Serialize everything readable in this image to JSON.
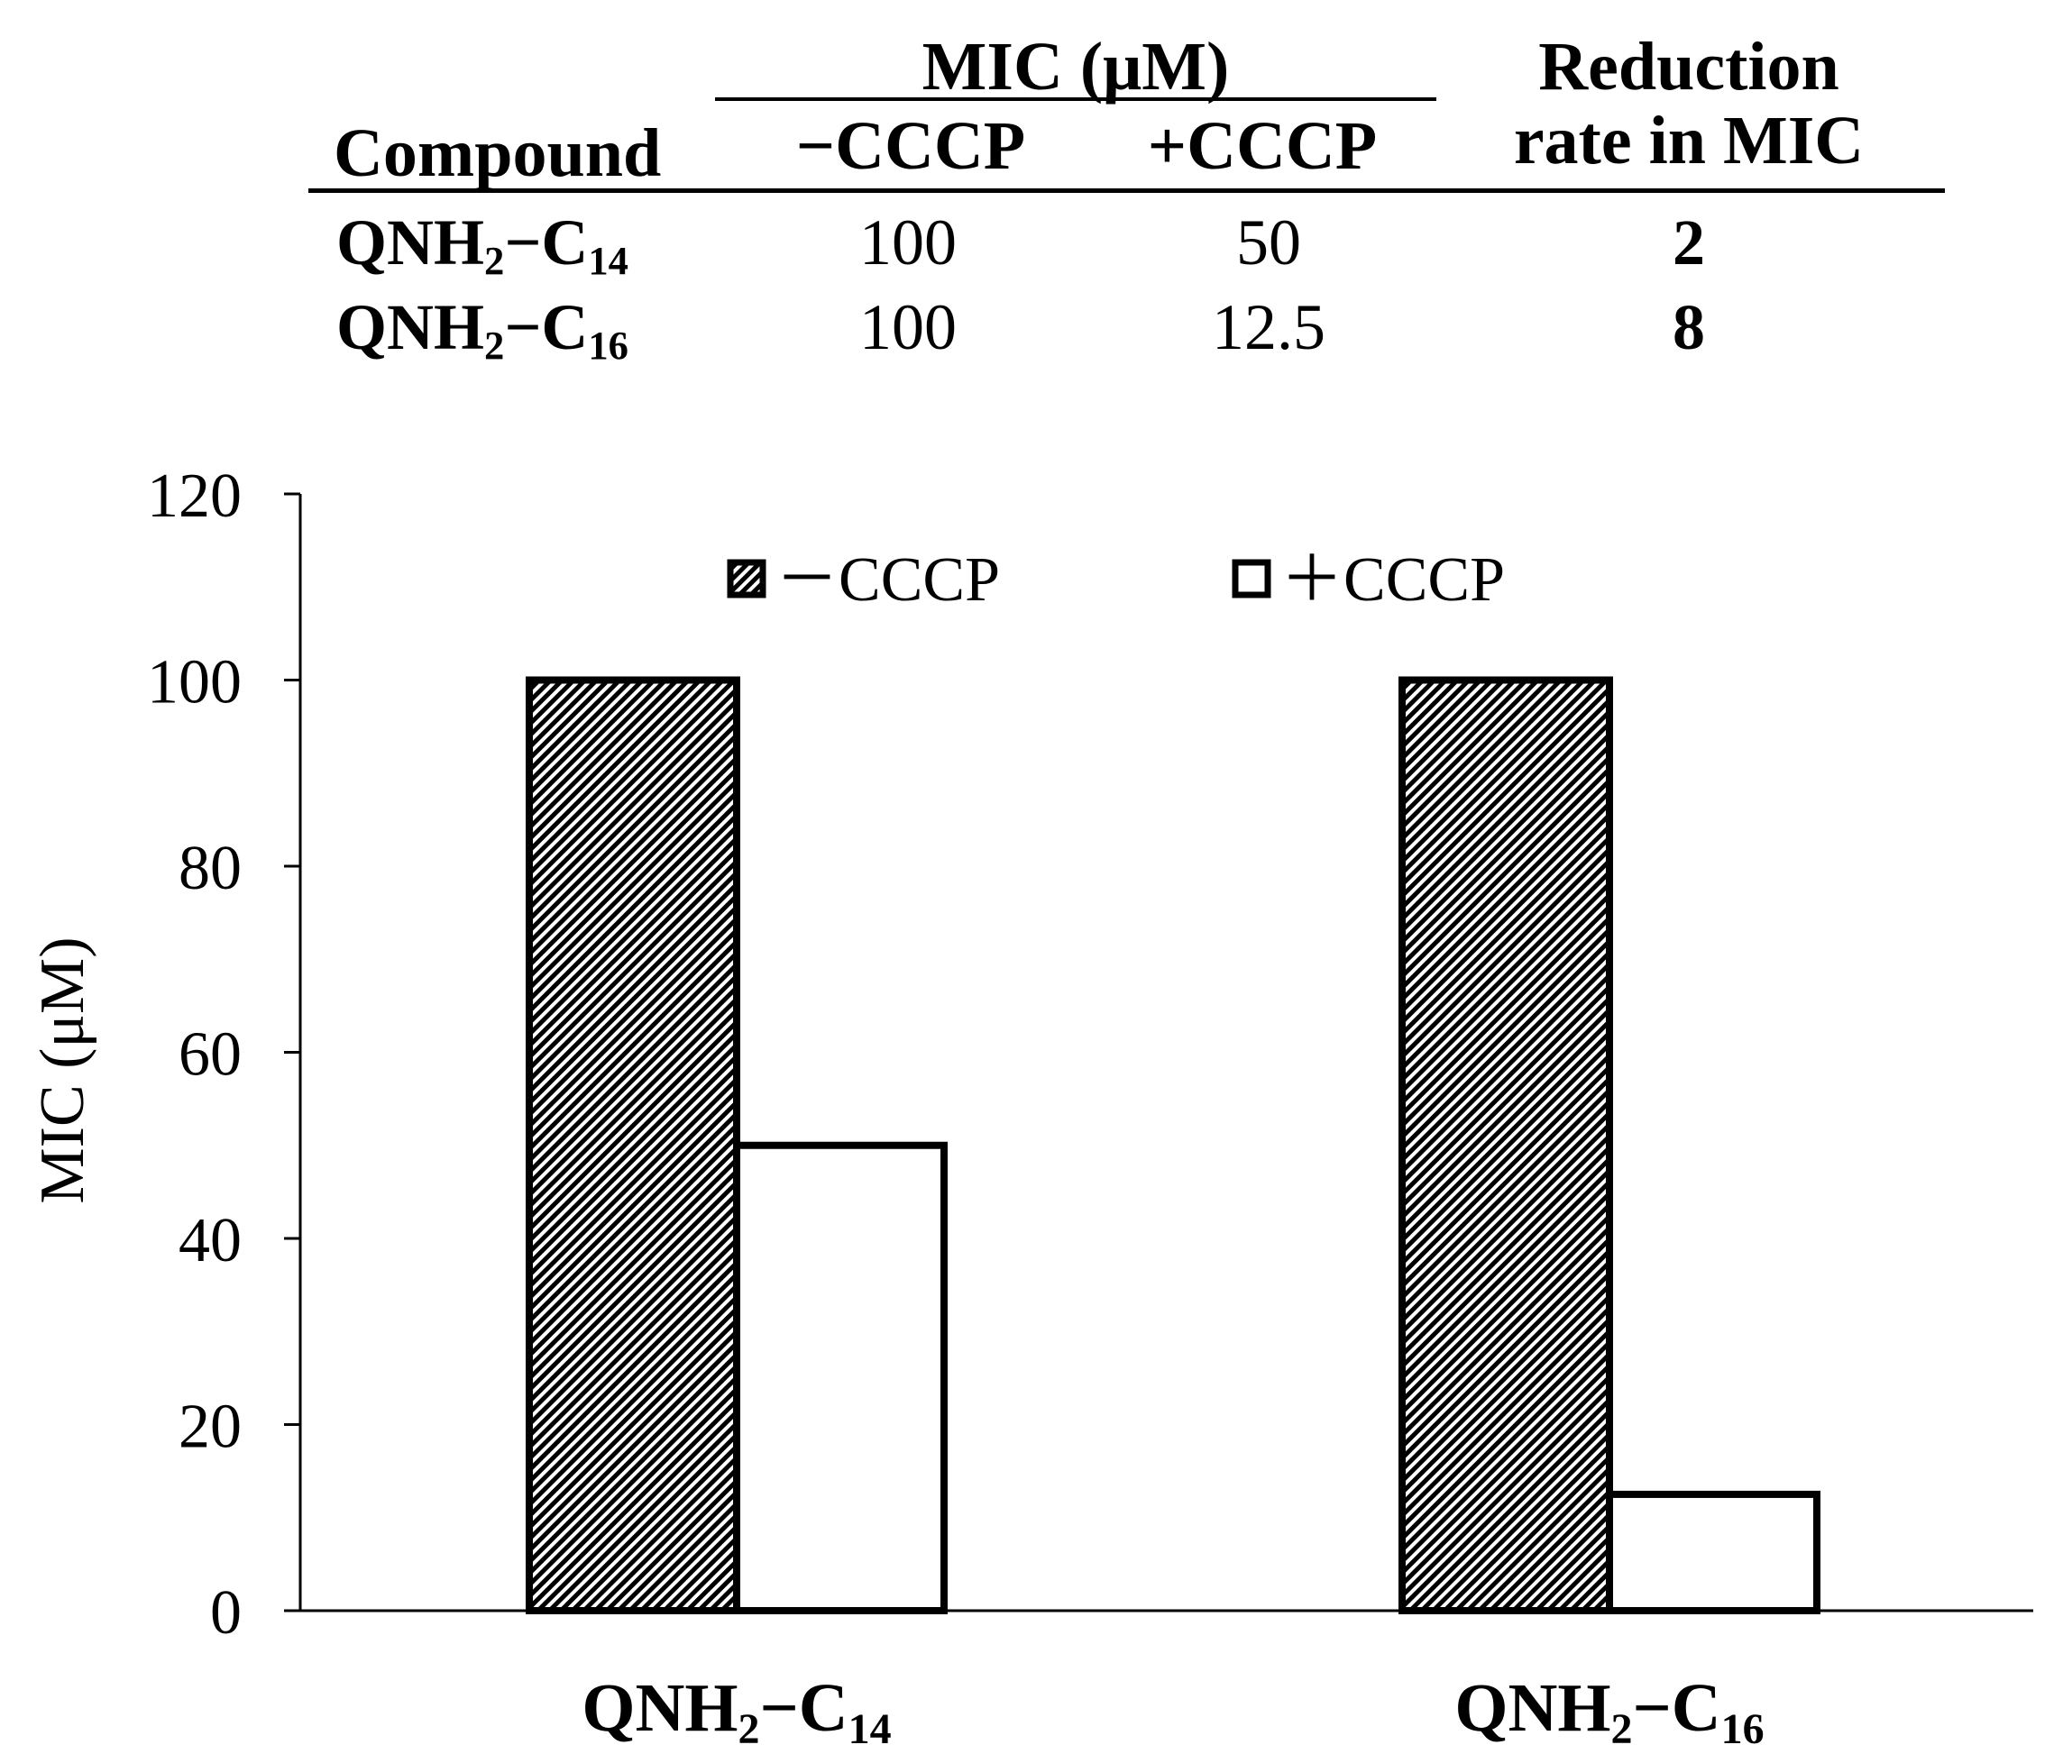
{
  "table": {
    "group_header": "MIC (μM)",
    "col_compound": "Compound",
    "col_minus": "−CCCP",
    "col_plus": "+CCCP",
    "col_reduction_line1": "Reduction",
    "col_reduction_line2": "rate in MIC",
    "rows": [
      {
        "compound_base": "QNH",
        "compound_sub1": "2",
        "compound_mid": "−C",
        "compound_sub2": "14",
        "minus": "100",
        "plus": "50",
        "reduction": "2"
      },
      {
        "compound_base": "QNH",
        "compound_sub1": "2",
        "compound_mid": "−C",
        "compound_sub2": "16",
        "minus": "100",
        "plus": "12.5",
        "reduction": "8"
      }
    ]
  },
  "chart_data": {
    "type": "bar",
    "categories": [
      "QNH2−C14",
      "QNH2−C16"
    ],
    "category_labels": [
      {
        "base": "QNH",
        "sub1": "2",
        "mid": "−C",
        "sub2": "14"
      },
      {
        "base": "QNH",
        "sub1": "2",
        "mid": "−C",
        "sub2": "16"
      }
    ],
    "series": [
      {
        "name": "－CCCP",
        "values": [
          100,
          100
        ],
        "fill": "hatched"
      },
      {
        "name": "＋CCCP",
        "values": [
          50,
          12.5
        ],
        "fill": "white"
      }
    ],
    "title": "",
    "xlabel": "",
    "ylabel": "MIC (μM)",
    "ylim": [
      0,
      120
    ],
    "yticks": [
      "0",
      "20",
      "40",
      "60",
      "80",
      "100",
      "120"
    ],
    "grid": false,
    "legend_position": "top-center"
  }
}
